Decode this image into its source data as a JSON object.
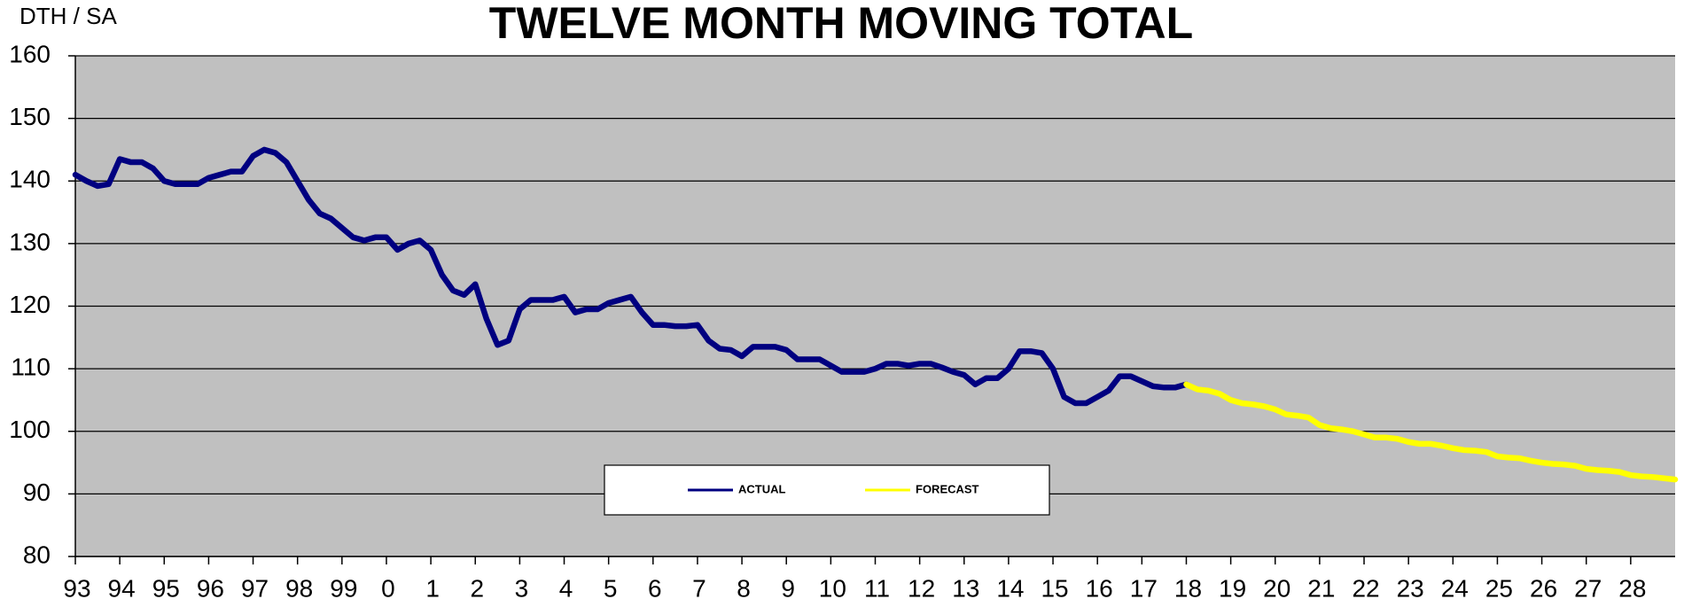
{
  "chart_data": {
    "type": "line",
    "title": "TWELVE MONTH MOVING TOTAL",
    "y_label": "DTH / SA",
    "categories": [
      "93",
      null,
      null,
      null,
      "94",
      null,
      null,
      null,
      "95",
      null,
      null,
      null,
      "96",
      null,
      null,
      null,
      "97",
      null,
      null,
      null,
      "98",
      null,
      null,
      null,
      "99",
      null,
      null,
      null,
      "0",
      null,
      null,
      null,
      "1",
      null,
      null,
      null,
      "2",
      null,
      null,
      null,
      "3",
      null,
      null,
      null,
      "4",
      null,
      null,
      null,
      "5",
      null,
      null,
      null,
      "6",
      null,
      null,
      null,
      "7",
      null,
      null,
      null,
      "8",
      null,
      null,
      null,
      "9",
      null,
      null,
      null,
      "10",
      null,
      null,
      null,
      "11",
      null,
      null,
      null,
      "12",
      null,
      null,
      null,
      "13",
      null,
      null,
      null,
      "14",
      null,
      null,
      null,
      "15",
      null,
      null,
      null,
      "16",
      null,
      null,
      null,
      "17",
      null,
      null,
      null,
      "18",
      null,
      null,
      null,
      "19",
      null,
      null,
      null,
      "20",
      null,
      null,
      null,
      "21",
      null,
      null,
      null,
      "22",
      null,
      null,
      null,
      "23",
      null,
      null,
      null,
      "24",
      null,
      null,
      null,
      "25",
      null,
      null,
      null,
      "26",
      null,
      null,
      null,
      "27",
      null,
      null,
      null,
      "28",
      null,
      null,
      null,
      null
    ],
    "series": [
      {
        "name": "ACTUAL",
        "color": "#000080",
        "values": [
          141,
          140,
          139.2,
          139.5,
          143.5,
          143,
          143,
          142,
          140,
          139.5,
          139.5,
          139.5,
          140.5,
          141,
          141.5,
          141.5,
          144,
          145,
          144.5,
          143,
          140,
          137,
          134.8,
          134,
          132.5,
          131,
          130.5,
          131,
          131,
          129,
          130,
          130.5,
          129,
          125,
          122.5,
          121.8,
          123.5,
          118,
          113.8,
          114.5,
          119.5,
          121,
          121,
          121,
          121.5,
          119,
          119.5,
          119.5,
          120.5,
          121,
          121.5,
          119,
          117,
          117,
          116.8,
          116.8,
          117,
          114.5,
          113.2,
          113,
          112,
          113.5,
          113.5,
          113.5,
          113,
          111.5,
          111.5,
          111.5,
          110.5,
          109.5,
          109.5,
          109.5,
          110,
          110.8,
          110.8,
          110.5,
          110.8,
          110.8,
          110.2,
          109.5,
          109,
          107.5,
          108.5,
          108.5,
          110,
          112.8,
          112.8,
          112.5,
          110,
          105.5,
          104.5,
          104.5,
          105.5,
          106.5,
          108.8,
          108.8,
          108,
          107.2,
          107,
          107,
          107.5,
          null,
          null,
          null,
          null,
          null,
          null,
          null,
          null,
          null,
          null,
          null,
          null,
          null,
          null,
          null,
          null,
          null,
          null,
          null,
          null,
          null,
          null,
          null,
          null,
          null,
          null,
          null,
          null,
          null,
          null,
          null,
          null,
          null,
          null,
          null,
          null,
          null,
          null,
          null,
          null,
          null,
          null,
          null,
          null
        ]
      },
      {
        "name": "FORECAST",
        "color": "#ffff00",
        "values": [
          null,
          null,
          null,
          null,
          null,
          null,
          null,
          null,
          null,
          null,
          null,
          null,
          null,
          null,
          null,
          null,
          null,
          null,
          null,
          null,
          null,
          null,
          null,
          null,
          null,
          null,
          null,
          null,
          null,
          null,
          null,
          null,
          null,
          null,
          null,
          null,
          null,
          null,
          null,
          null,
          null,
          null,
          null,
          null,
          null,
          null,
          null,
          null,
          null,
          null,
          null,
          null,
          null,
          null,
          null,
          null,
          null,
          null,
          null,
          null,
          null,
          null,
          null,
          null,
          null,
          null,
          null,
          null,
          null,
          null,
          null,
          null,
          null,
          null,
          null,
          null,
          null,
          null,
          null,
          null,
          null,
          null,
          null,
          null,
          null,
          null,
          null,
          null,
          null,
          null,
          null,
          null,
          null,
          null,
          null,
          null,
          null,
          null,
          null,
          null,
          107.5,
          106.7,
          106.5,
          106,
          105,
          104.5,
          104.3,
          104,
          103.5,
          102.7,
          102.5,
          102.2,
          101,
          100.5,
          100.3,
          100,
          99.5,
          99,
          99,
          98.8,
          98.3,
          98,
          98,
          97.7,
          97.3,
          97,
          96.9,
          96.7,
          96,
          95.8,
          95.7,
          95.3,
          95,
          94.8,
          94.7,
          94.5,
          94,
          93.8,
          93.7,
          93.5,
          93,
          92.8,
          92.7,
          92.5,
          92.3
        ]
      }
    ],
    "ylim": [
      80,
      160
    ],
    "yticks": [
      80,
      90,
      100,
      110,
      120,
      130,
      140,
      150,
      160
    ],
    "grid": true,
    "legend": "bottom",
    "background": "#c0c0c0"
  }
}
